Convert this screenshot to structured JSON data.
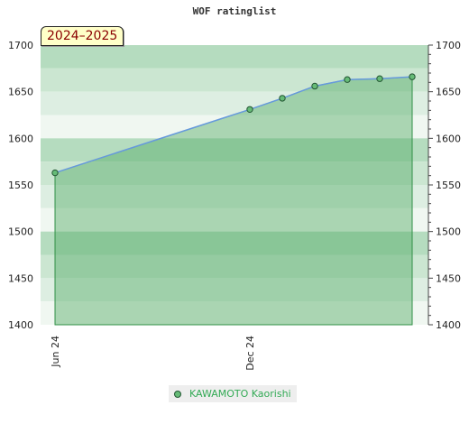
{
  "chart_data": {
    "type": "area",
    "title": "WOF ratinglist",
    "badge": "2024–2025",
    "x_tick_labels": [
      "Jun 24",
      "Dec 24"
    ],
    "ylim": [
      1400,
      1700
    ],
    "y_ticks": [
      1400,
      1450,
      1500,
      1550,
      1600,
      1650,
      1700
    ],
    "series": [
      {
        "name": "KAWAMOTO Kaorishi",
        "points": [
          {
            "x": "2024-06",
            "y": 1563
          },
          {
            "x": "2024-12",
            "y": 1631
          },
          {
            "x": "2025-01",
            "y": 1643
          },
          {
            "x": "2025-02",
            "y": 1656
          },
          {
            "x": "2025-03",
            "y": 1663
          },
          {
            "x": "2025-04",
            "y": 1664
          },
          {
            "x": "2025-05",
            "y": 1666
          }
        ]
      }
    ],
    "colors": {
      "line": "#6699dd",
      "fill": "#55aa66",
      "marker": "#66bb77",
      "marker_stroke": "#225533",
      "legend_text": "#33aa55",
      "badge_bg": "#ffffc8",
      "badge_text": "#8b0000"
    },
    "legend_position": "bottom-center",
    "y_axis_right": true
  }
}
